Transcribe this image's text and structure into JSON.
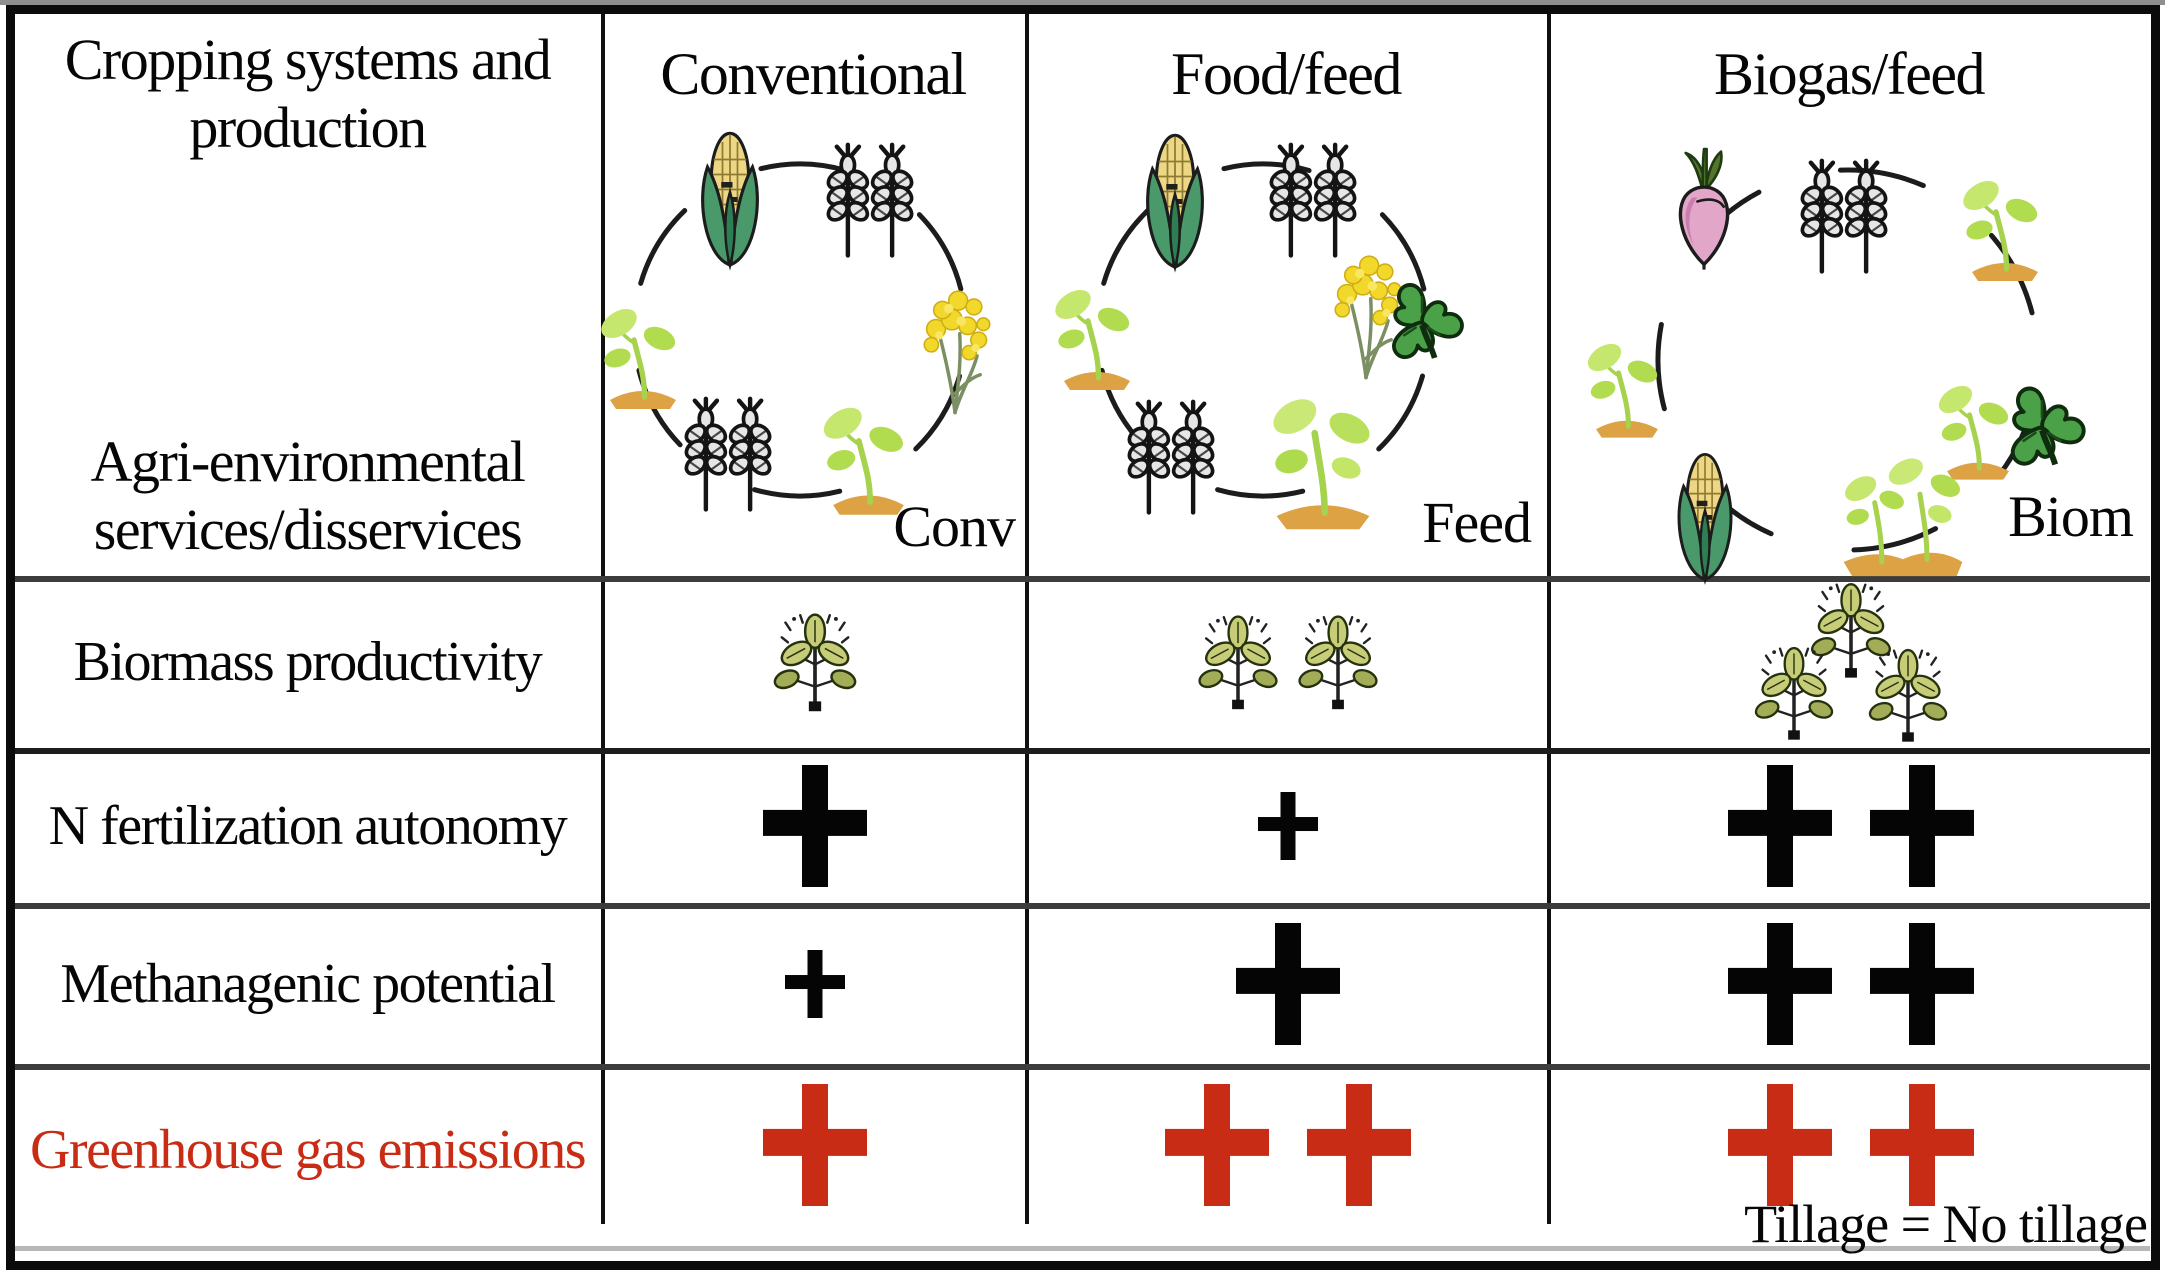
{
  "figure": {
    "corner_header": "Cropping systems and production",
    "row2_header": "Agri-environmental services/disservices",
    "rows": [
      {
        "key": "biomass",
        "label": "Biormass productivity"
      },
      {
        "key": "n_fertilization",
        "label": "N fertilization autonomy"
      },
      {
        "key": "methanagenic",
        "label": "Methanagenic potential"
      },
      {
        "key": "greenhouse_gas",
        "label": "Greenhouse gas emissions",
        "color": "#c92c15"
      }
    ],
    "footnote": "Tillage = No tillage",
    "colors": {
      "emphasis_red": "#c92c15",
      "plus_black": "#050505"
    }
  },
  "columns": [
    {
      "header": "Conventional",
      "cycle_label": "Conv",
      "rotation_icons": [
        "corn-icon",
        "wheat-pair-icon",
        "rapeseed-flower-icon",
        "seedling-icon",
        "wheat-pair-icon",
        "seedling-icon"
      ],
      "biomass_plant_count": 1,
      "indicators": {
        "n_fertilization": [
          "large"
        ],
        "methanagenic": [
          "small"
        ],
        "greenhouse_gas": [
          "large"
        ]
      }
    },
    {
      "header": "Food/feed",
      "cycle_label": "Feed",
      "rotation_icons": [
        "corn-icon",
        "wheat-pair-icon",
        "rapeseed-flower-icon",
        "clover-icon",
        "seedling-large-icon",
        "wheat-pair-icon",
        "seedling-icon"
      ],
      "biomass_plant_count": 2,
      "indicators": {
        "n_fertilization": [
          "small"
        ],
        "methanagenic": [
          "large"
        ],
        "greenhouse_gas": [
          "large",
          "large"
        ]
      }
    },
    {
      "header": "Biogas/feed",
      "cycle_label": "Biom",
      "rotation_icons": [
        "beet-icon",
        "wheat-pair-icon",
        "seedling-icon",
        "seedling-icon",
        "clover-icon",
        "seedling-double-icon",
        "corn-icon",
        "seedling-icon"
      ],
      "biomass_plant_count": 3,
      "indicators": {
        "n_fertilization": [
          "large",
          "large"
        ],
        "methanagenic": [
          "large",
          "large"
        ],
        "greenhouse_gas": [
          "large",
          "large"
        ]
      }
    }
  ]
}
